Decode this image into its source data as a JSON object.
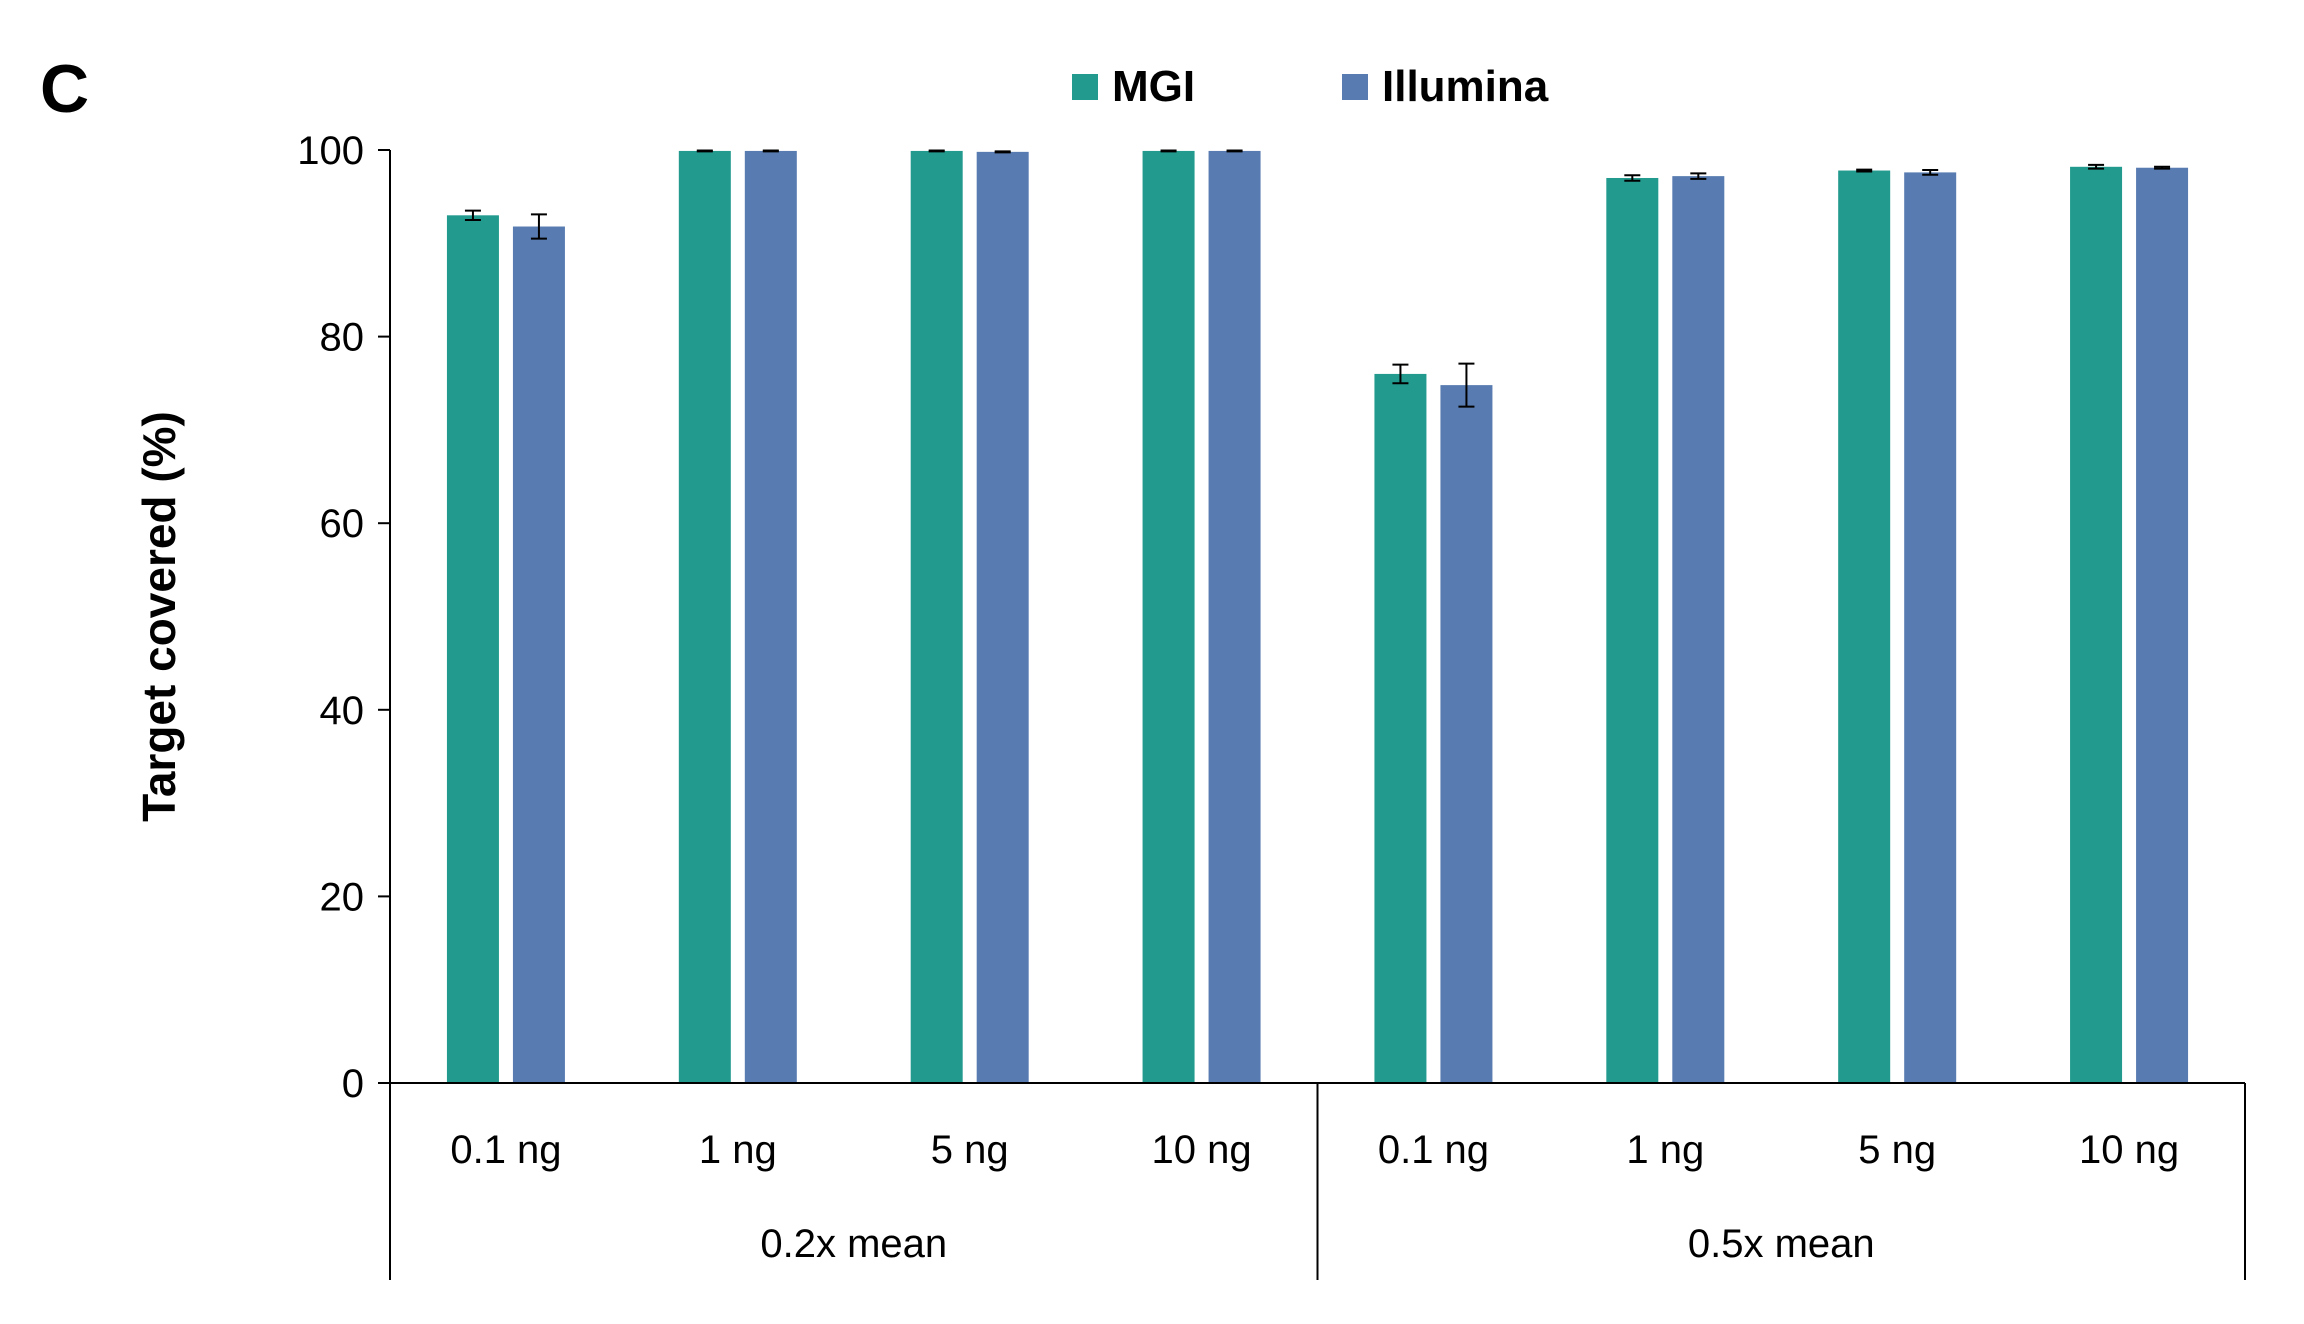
{
  "panel_label": "C",
  "chart_data": {
    "type": "bar",
    "ylabel": "Target covered (%)",
    "ylim": [
      0,
      100
    ],
    "yticks": [
      0,
      20,
      40,
      60,
      80,
      100
    ],
    "grid": false,
    "legend_position": "top-center",
    "groups": [
      {
        "label": "0.2x mean",
        "categories": [
          "0.1 ng",
          "1 ng",
          "5 ng",
          "10 ng"
        ]
      },
      {
        "label": "0.5x mean",
        "categories": [
          "0.1 ng",
          "1 ng",
          "5 ng",
          "10 ng"
        ]
      }
    ],
    "series": [
      {
        "name": "MGI",
        "color": "#229a8e",
        "values": [
          93.0,
          99.9,
          99.9,
          99.9,
          76.0,
          97.0,
          97.8,
          98.2
        ],
        "errors": [
          0.5,
          0.05,
          0.05,
          0.05,
          1.0,
          0.3,
          0.1,
          0.2
        ]
      },
      {
        "name": "Illumina",
        "color": "#587cb1",
        "values": [
          91.8,
          99.9,
          99.8,
          99.9,
          74.8,
          97.2,
          97.6,
          98.1
        ],
        "errors": [
          1.3,
          0.05,
          0.05,
          0.05,
          2.3,
          0.3,
          0.25,
          0.1
        ]
      }
    ]
  }
}
